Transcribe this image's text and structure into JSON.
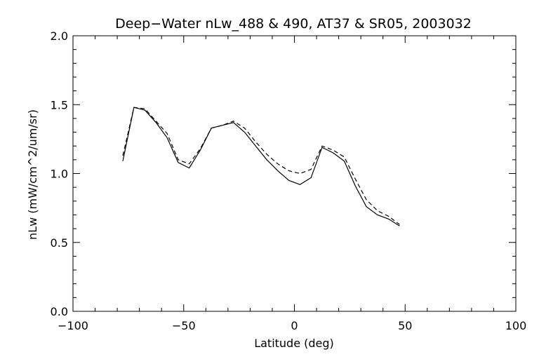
{
  "chart_data": {
    "type": "line",
    "title": "Deep−Water nLw_488 & 490, AT37 & SR05, 2003032",
    "xlabel": "Latitude (deg)",
    "ylabel": "nLw (mW/cm^2/um/sr)",
    "xlim": [
      -100,
      100
    ],
    "ylim": [
      0.0,
      2.0
    ],
    "x_ticks": [
      -100,
      -50,
      0,
      50,
      100
    ],
    "x_tick_labels": [
      "−100",
      "−50",
      "0",
      "50",
      "100"
    ],
    "y_ticks": [
      0.0,
      0.5,
      1.0,
      1.5,
      2.0
    ],
    "y_tick_labels": [
      "0.0",
      "0.5",
      "1.0",
      "1.5",
      "2.0"
    ],
    "grid": false,
    "series": [
      {
        "style": "solid",
        "x": [
          -77.5,
          -72.5,
          -67.5,
          -62.5,
          -57.5,
          -52.5,
          -47.5,
          -42.5,
          -37.5,
          -32.5,
          -27.5,
          -22.5,
          -17.5,
          -12.5,
          -7.5,
          -2.5,
          2.5,
          7.5,
          12.5,
          17.5,
          22.5,
          27.5,
          32.5,
          37.5,
          42.5,
          47.5
        ],
        "y": [
          1.09,
          1.48,
          1.46,
          1.37,
          1.26,
          1.08,
          1.04,
          1.17,
          1.33,
          1.35,
          1.37,
          1.3,
          1.2,
          1.1,
          1.02,
          0.95,
          0.92,
          0.97,
          1.19,
          1.15,
          1.09,
          0.91,
          0.76,
          0.7,
          0.67,
          0.62
        ]
      },
      {
        "style": "dashed",
        "x": [
          -77.5,
          -72.5,
          -67.5,
          -62.5,
          -57.5,
          -52.5,
          -47.5,
          -42.5,
          -37.5,
          -32.5,
          -27.5,
          -22.5,
          -17.5,
          -12.5,
          -7.5,
          -2.5,
          2.5,
          7.5,
          12.5,
          17.5,
          22.5,
          27.5,
          32.5,
          37.5,
          42.5,
          47.5
        ],
        "y": [
          1.13,
          1.48,
          1.47,
          1.38,
          1.29,
          1.1,
          1.07,
          1.18,
          1.33,
          1.35,
          1.38,
          1.33,
          1.23,
          1.14,
          1.07,
          1.02,
          1.0,
          1.03,
          1.2,
          1.17,
          1.12,
          0.96,
          0.81,
          0.73,
          0.69,
          0.63
        ]
      }
    ]
  }
}
